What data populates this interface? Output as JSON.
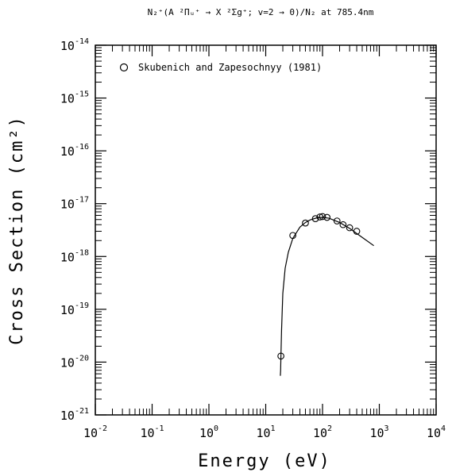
{
  "title": "N₂⁺(A ²Πᵤ⁺ → X ²Σg⁺; v=2 → 0)/N₂ at 785.4nm",
  "chart_data": {
    "type": "scatter",
    "title": "N₂⁺(A ²Πᵤ⁺ → X ²Σg⁺; v=2 → 0)/N₂ at 785.4nm",
    "xlabel": "Energy (eV)",
    "ylabel": "Cross Section (cm²)",
    "xscale": "log",
    "yscale": "log",
    "xlim": [
      0.01,
      10000
    ],
    "ylim": [
      1e-21,
      1e-14
    ],
    "x_ticks": [
      {
        "base": "10",
        "exp": "-2"
      },
      {
        "base": "10",
        "exp": "-1"
      },
      {
        "base": "10",
        "exp": "0"
      },
      {
        "base": "10",
        "exp": "1"
      },
      {
        "base": "10",
        "exp": "2"
      },
      {
        "base": "10",
        "exp": "3"
      },
      {
        "base": "10",
        "exp": "4"
      }
    ],
    "y_ticks": [
      {
        "base": "10",
        "exp": "-14"
      },
      {
        "base": "10",
        "exp": "-15"
      },
      {
        "base": "10",
        "exp": "-16"
      },
      {
        "base": "10",
        "exp": "-17"
      },
      {
        "base": "10",
        "exp": "-18"
      },
      {
        "base": "10",
        "exp": "-19"
      },
      {
        "base": "10",
        "exp": "-20"
      },
      {
        "base": "10",
        "exp": "-21"
      }
    ],
    "legend_position": "top-left",
    "grid": false,
    "series": [
      {
        "name": "Skubenich and Zapesochnyy (1981)",
        "marker": "open-circle",
        "x": [
          18.5,
          30,
          50,
          75,
          90,
          100,
          120,
          180,
          230,
          300,
          400
        ],
        "y": [
          1.3e-20,
          2.5e-18,
          4.3e-18,
          5.2e-18,
          5.6e-18,
          5.7e-18,
          5.5e-18,
          4.7e-18,
          4e-18,
          3.5e-18,
          3e-18
        ]
      },
      {
        "name": "",
        "style": "line",
        "x": [
          18.1,
          18.3,
          18.5,
          19,
          20,
          22,
          25,
          30,
          40,
          50,
          60,
          80,
          100,
          130,
          200,
          300,
          500,
          800
        ],
        "y": [
          5.5e-21,
          7e-21,
          1.2e-20,
          4e-20,
          2e-19,
          6e-19,
          1.2e-18,
          2.2e-18,
          3.6e-18,
          4.4e-18,
          4.9e-18,
          5.4e-18,
          5.5e-18,
          5.3e-18,
          4.4e-18,
          3.4e-18,
          2.3e-18,
          1.6e-18
        ]
      }
    ]
  }
}
